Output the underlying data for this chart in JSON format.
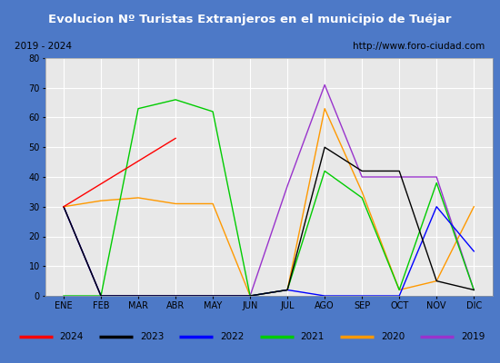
{
  "title": "Evolucion Nº Turistas Extranjeros en el municipio de Tuéjar",
  "subtitle_left": "2019 - 2024",
  "subtitle_right": "http://www.foro-ciudad.com",
  "months": [
    "ENE",
    "FEB",
    "MAR",
    "ABR",
    "MAY",
    "JUN",
    "JUL",
    "AGO",
    "SEP",
    "OCT",
    "NOV",
    "DIC"
  ],
  "series": {
    "2024": {
      "color": "#ff0000",
      "data": [
        30,
        null,
        null,
        53,
        null,
        null,
        null,
        null,
        null,
        null,
        null,
        null
      ]
    },
    "2023": {
      "color": "#000000",
      "data": [
        30,
        0,
        0,
        0,
        0,
        0,
        2,
        50,
        42,
        42,
        5,
        2
      ]
    },
    "2022": {
      "color": "#0000ff",
      "data": [
        30,
        0,
        0,
        0,
        0,
        0,
        2,
        0,
        0,
        0,
        30,
        15
      ]
    },
    "2021": {
      "color": "#00cc00",
      "data": [
        0,
        0,
        63,
        66,
        62,
        0,
        2,
        42,
        33,
        2,
        38,
        2
      ]
    },
    "2020": {
      "color": "#ff9900",
      "data": [
        30,
        32,
        33,
        31,
        31,
        0,
        2,
        63,
        35,
        2,
        5,
        30
      ]
    },
    "2019": {
      "color": "#9933cc",
      "data": [
        30,
        0,
        0,
        0,
        0,
        0,
        37,
        71,
        40,
        40,
        40,
        2
      ]
    }
  },
  "ylim": [
    0,
    80
  ],
  "yticks": [
    0,
    10,
    20,
    30,
    40,
    50,
    60,
    70,
    80
  ],
  "title_bg": "#4d79c7",
  "title_color": "#ffffff",
  "plot_bg": "#e8e8e8",
  "grid_color": "#ffffff",
  "outer_bg": "#4d79c7",
  "inner_bg": "#ffffff"
}
